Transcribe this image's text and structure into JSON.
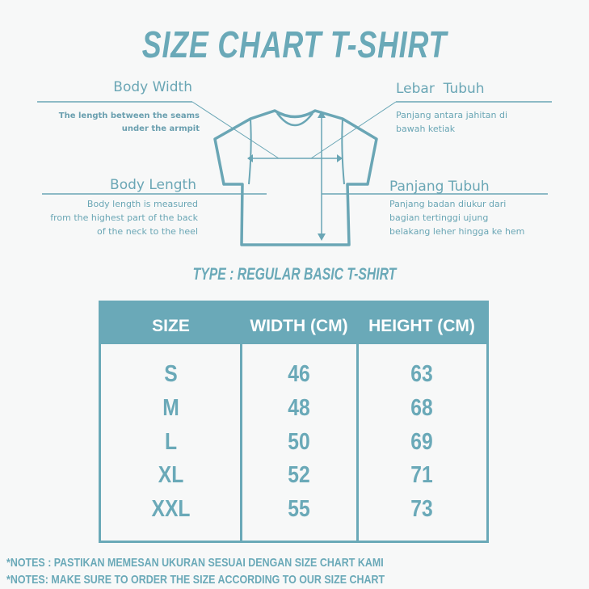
{
  "title": "SIZE CHART T-SHIRT",
  "diagram": {
    "body_width": {
      "label": "Body Width",
      "desc": [
        "The length between the seams",
        "under the armpit"
      ]
    },
    "lebar_tubuh": {
      "label": "Lebar  Tubuh",
      "desc": [
        "Panjang antara jahitan di",
        "bawah ketiak"
      ]
    },
    "body_length": {
      "label": "Body Length",
      "desc": [
        "Body length is measured",
        "from the highest part of the back",
        "of the neck to the heel"
      ]
    },
    "panjang_tubuh": {
      "label": "Panjang Tubuh",
      "desc": [
        "Panjang badan diukur dari",
        "bagian tertinggi ujung",
        "belakang leher hingga ke hem"
      ]
    }
  },
  "type_label": "TYPE : REGULAR BASIC T-SHIRT",
  "table": {
    "headers": [
      "SIZE",
      "WIDTH (CM)",
      "HEIGHT (CM)"
    ],
    "rows": [
      [
        "S",
        "46",
        "63"
      ],
      [
        "M",
        "48",
        "68"
      ],
      [
        "L",
        "50",
        "69"
      ],
      [
        "XL",
        "52",
        "71"
      ],
      [
        "XXL",
        "55",
        "73"
      ]
    ]
  },
  "notes": [
    "*NOTES : PASTIKAN MEMESAN UKURAN SESUAI DENGAN SIZE CHART KAMI",
    "*NOTES: MAKE SURE TO ORDER THE SIZE ACCORDING TO OUR SIZE CHART"
  ],
  "colors": {
    "accent": "#6aa9b8",
    "background": "#f7f8f8"
  }
}
